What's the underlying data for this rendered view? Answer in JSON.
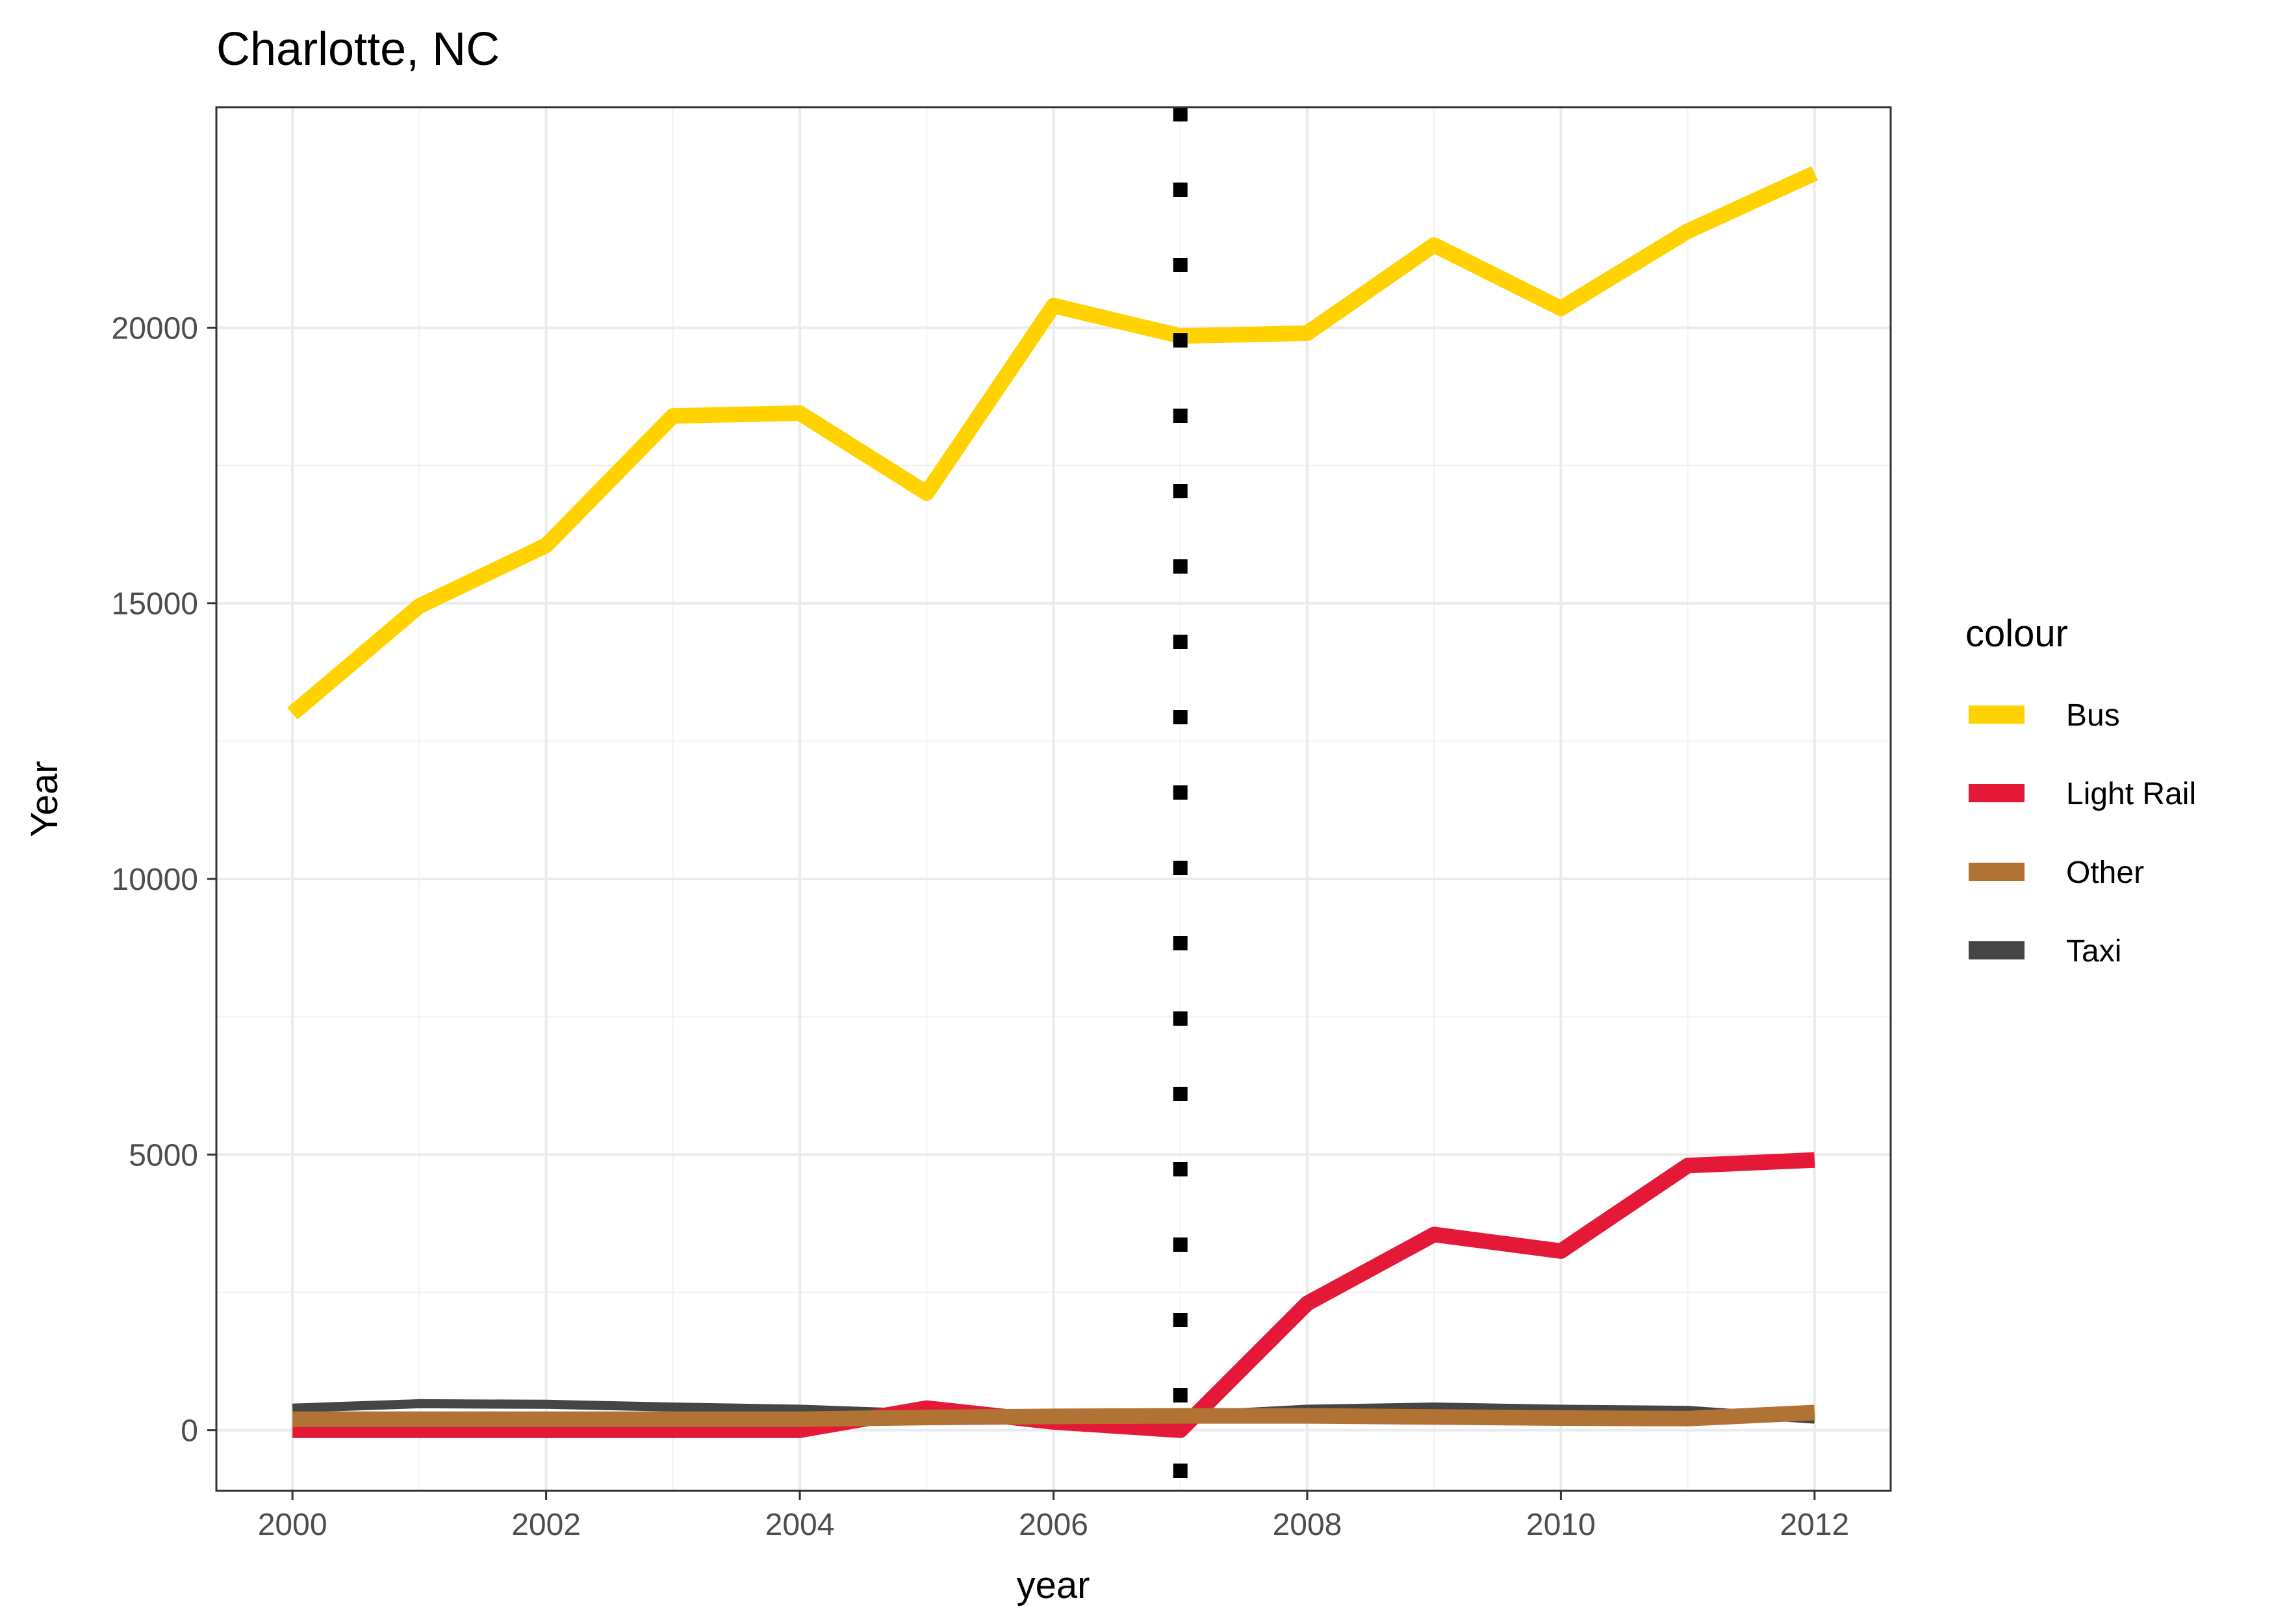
{
  "chart_data": {
    "type": "line",
    "title": "Charlotte, NC",
    "xlabel": "year",
    "ylabel": "Year",
    "x": [
      2000,
      2001,
      2002,
      2003,
      2004,
      2005,
      2006,
      2007,
      2008,
      2009,
      2010,
      2011,
      2012
    ],
    "x_ticks": [
      2000,
      2002,
      2004,
      2006,
      2008,
      2010,
      2012
    ],
    "y_ticks": [
      0,
      5000,
      10000,
      15000,
      20000
    ],
    "xlim": [
      1999.4,
      2012.6
    ],
    "ylim": [
      -1100,
      24000
    ],
    "grid": true,
    "legend": {
      "title": "colour",
      "position": "right"
    },
    "reference_line": {
      "x": 2007,
      "style": "dotted",
      "color": "#000000"
    },
    "series": [
      {
        "name": "Taxi",
        "color": "#454545",
        "values": [
          400,
          480,
          470,
          420,
          380,
          300,
          280,
          260,
          380,
          420,
          380,
          360,
          200
        ]
      },
      {
        "name": "Bus",
        "color": "#FFD200",
        "values": [
          13000,
          14950,
          16050,
          18400,
          18450,
          17000,
          20400,
          19850,
          19900,
          21500,
          20350,
          21750,
          22800
        ]
      },
      {
        "name": "Light Rail",
        "color": "#E31937",
        "values": [
          0,
          0,
          0,
          0,
          0,
          400,
          150,
          0,
          2300,
          3550,
          3250,
          4800,
          4900
        ]
      },
      {
        "name": "Other",
        "color": "#B07334",
        "values": [
          200,
          200,
          200,
          200,
          200,
          230,
          250,
          260,
          260,
          240,
          220,
          210,
          320
        ]
      }
    ],
    "legend_order": [
      "Bus",
      "Light Rail",
      "Other",
      "Taxi"
    ]
  }
}
